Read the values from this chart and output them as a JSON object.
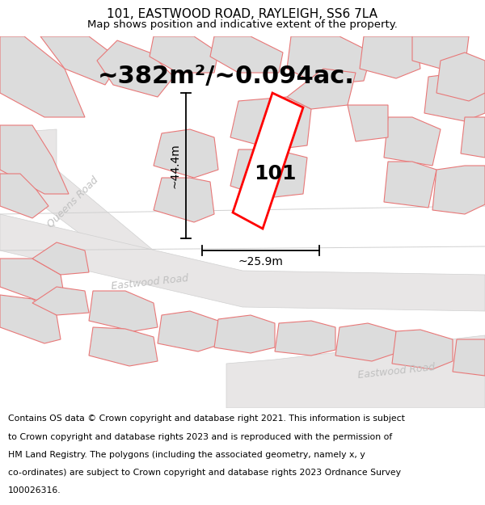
{
  "title": "101, EASTWOOD ROAD, RAYLEIGH, SS6 7LA",
  "subtitle": "Map shows position and indicative extent of the property.",
  "area_text": "~382m²/~0.094ac.",
  "dim_width": "~25.9m",
  "dim_height": "~44.4m",
  "label_101": "101",
  "road_label_queens": "Queens Road",
  "road_label_eastwood1": "Eastwood Road",
  "road_label_eastwood2": "Eastwood Road",
  "footer_lines": [
    "Contains OS data © Crown copyright and database right 2021. This information is subject",
    "to Crown copyright and database rights 2023 and is reproduced with the permission of",
    "HM Land Registry. The polygons (including the associated geometry, namely x, y",
    "co-ordinates) are subject to Crown copyright and database rights 2023 Ordnance Survey",
    "100026316."
  ],
  "bg_color": "#f2f2f2",
  "map_bg": "#f2f0f0",
  "parcel_fill": "#dcdcdc",
  "parcel_edge": "#e87878",
  "road_fill": "#e8e6e6",
  "road_edge": "#d0d0d0",
  "highlight_fill": "#ffffff",
  "highlight_edge": "#ff0000",
  "dim_line_color": "#000000",
  "label_color": "#000000",
  "road_text_color": "#c0c0c0",
  "title_fontsize": 11,
  "subtitle_fontsize": 9.5,
  "area_fontsize": 22,
  "label_fontsize": 18,
  "dim_fontsize": 10,
  "road_fontsize": 9,
  "footer_fontsize": 7.8
}
